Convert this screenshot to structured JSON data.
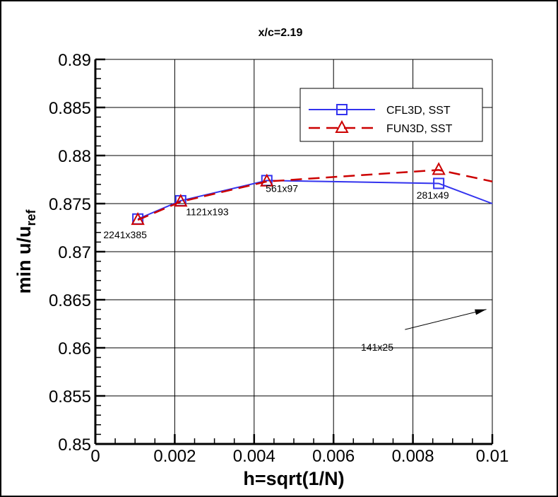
{
  "chart_data": {
    "type": "line",
    "title": "x/c=2.19",
    "xlabel": "h=sqrt(1/N)",
    "ylabel_main": "min u/u",
    "ylabel_sub": "ref",
    "xlim": [
      0,
      0.01
    ],
    "ylim": [
      0.85,
      0.89
    ],
    "xticks": [
      "0",
      "0.002",
      "0.004",
      "0.006",
      "0.008",
      "0.01"
    ],
    "xtick_values": [
      0,
      0.002,
      0.004,
      0.006,
      0.008,
      0.01
    ],
    "yticks": [
      "0.85",
      "0.855",
      "0.86",
      "0.865",
      "0.87",
      "0.875",
      "0.88",
      "0.885",
      "0.89"
    ],
    "ytick_values": [
      0.85,
      0.855,
      0.86,
      0.865,
      0.87,
      0.875,
      0.88,
      0.885,
      0.89
    ],
    "grid": true,
    "legend_position": "top-right",
    "series": [
      {
        "name": "CFL3D, SST",
        "color": "#3333ee",
        "marker": "square",
        "linestyle": "solid",
        "x": [
          0.00107,
          0.00215,
          0.00432,
          0.00865
        ],
        "y": [
          0.8734,
          0.8753,
          0.8774,
          0.8771
        ],
        "continues_to": {
          "x": 0.01,
          "y": 0.875
        }
      },
      {
        "name": "FUN3D, SST",
        "color": "#cc0000",
        "marker": "triangle",
        "linestyle": "dashed",
        "x": [
          0.00107,
          0.00215,
          0.00432,
          0.00865
        ],
        "y": [
          0.8733,
          0.8752,
          0.8773,
          0.8785
        ],
        "continues_to": {
          "x": 0.01,
          "y": 0.8773
        }
      }
    ],
    "annotations": [
      {
        "text": "2241x385",
        "x": 0.00075,
        "y": 0.8714
      },
      {
        "text": "1121x193",
        "x": 0.00282,
        "y": 0.8738
      },
      {
        "text": "561x97",
        "x": 0.0047,
        "y": 0.8762
      },
      {
        "text": "281x49",
        "x": 0.0085,
        "y": 0.8755
      },
      {
        "text": "141x25",
        "x": 0.0071,
        "y": 0.8597
      }
    ],
    "arrow": {
      "from": [
        0.0078,
        0.8619
      ],
      "to": [
        0.00985,
        0.864
      ]
    }
  }
}
